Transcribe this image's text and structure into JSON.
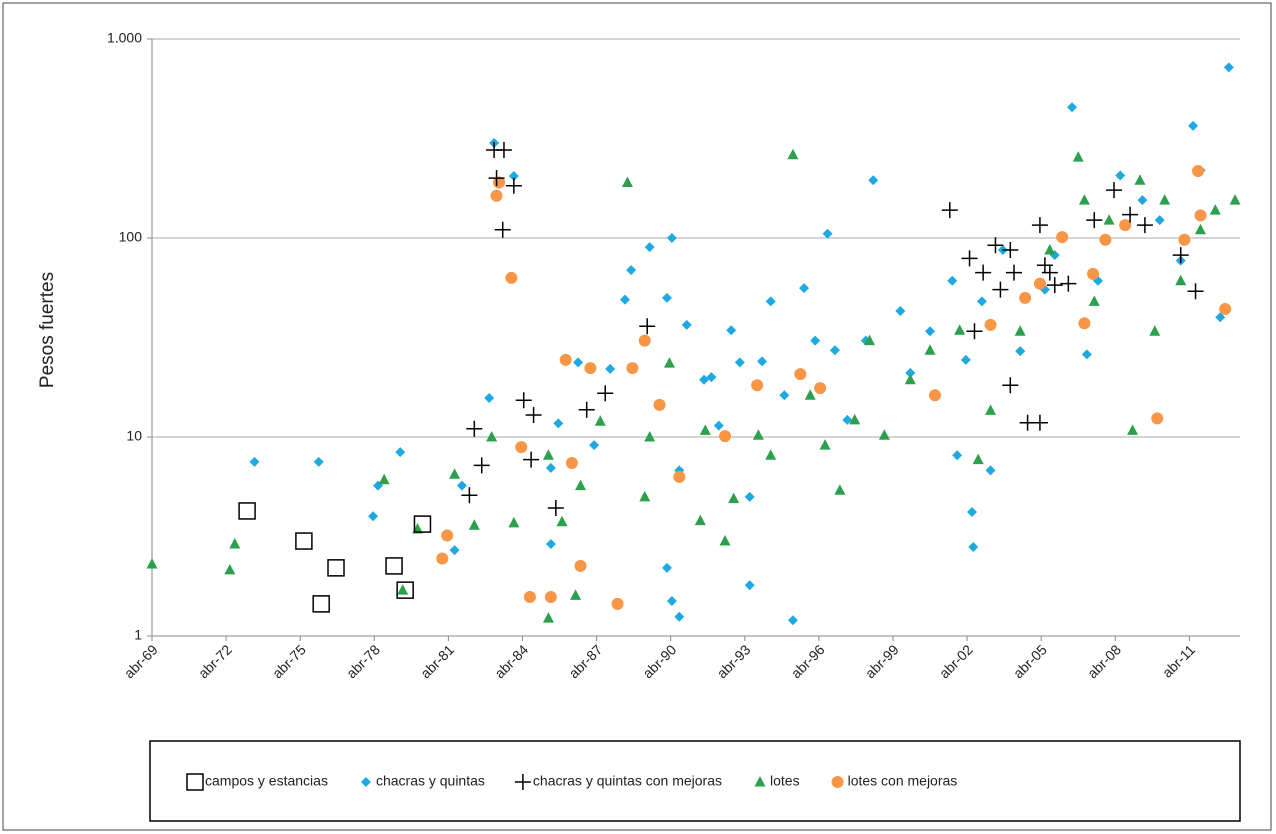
{
  "chart_data": {
    "type": "scatter",
    "y_label": "Pesos fuertes",
    "y_log": true,
    "grid": true,
    "legend": "bottom",
    "xlim": [
      1969.25,
      2013.3
    ],
    "xticks": [
      {
        "value": 1969.25,
        "label": "abr-69"
      },
      {
        "value": 1972.25,
        "label": "abr-72"
      },
      {
        "value": 1975.25,
        "label": "abr-75"
      },
      {
        "value": 1978.25,
        "label": "abr-78"
      },
      {
        "value": 1981.25,
        "label": "abr-81"
      },
      {
        "value": 1984.25,
        "label": "abr-84"
      },
      {
        "value": 1987.25,
        "label": "abr-87"
      },
      {
        "value": 1990.25,
        "label": "abr-90"
      },
      {
        "value": 1993.25,
        "label": "abr-93"
      },
      {
        "value": 1996.25,
        "label": "abr-96"
      },
      {
        "value": 1999.25,
        "label": "abr-99"
      },
      {
        "value": 2002.25,
        "label": "abr-02"
      },
      {
        "value": 2005.25,
        "label": "abr-05"
      },
      {
        "value": 2008.25,
        "label": "abr-08"
      },
      {
        "value": 2011.25,
        "label": "abr-11"
      }
    ],
    "ylim": [
      1,
      1000
    ],
    "yticks": [
      1,
      10,
      100,
      {
        "value": 1000,
        "label": "1.000"
      }
    ],
    "series": [
      {
        "name": "campos y estancias",
        "marker": "square",
        "color": "#000000",
        "x": [
          1973.1,
          1975.4,
          1976.7,
          1976.1,
          1979.05,
          1979.5,
          1980.2
        ],
        "values": [
          4.25,
          3.0,
          2.2,
          1.45,
          2.25,
          1.7,
          3.65
        ]
      },
      {
        "name": "chacras y quintas",
        "marker": "diamond",
        "color": "#1fa9e1",
        "x": [
          1973.4,
          1976.0,
          1978.2,
          1978.4,
          1979.3,
          1981.5,
          1981.8,
          1982.9,
          1983.1,
          1983.9,
          1985.4,
          1985.4,
          1985.7,
          1986.5,
          1987.15,
          1987.8,
          1988.4,
          1988.65,
          1989.4,
          1990.1,
          1990.3,
          1990.1,
          1990.3,
          1990.6,
          1990.9,
          1990.6,
          1991.6,
          1991.9,
          1992.2,
          1992.7,
          1993.05,
          1993.45,
          1993.95,
          1993.45,
          1994.3,
          1994.85,
          1995.2,
          1995.65,
          1996.1,
          1996.6,
          1996.9,
          1997.4,
          1998.15,
          1998.45,
          1999.55,
          1999.95,
          2000.75,
          2001.65,
          2001.85,
          2002.2,
          2002.45,
          2002.5,
          2002.85,
          2003.2,
          2003.7,
          2004.4,
          2005.4,
          2005.8,
          2006.5,
          2007.1,
          2007.55,
          2008.45,
          2009.35,
          2010.05,
          2010.9,
          2011.4,
          2011.7,
          2012.5,
          2012.85
        ],
        "values": [
          7.5,
          7.5,
          4.0,
          5.7,
          8.4,
          2.7,
          5.7,
          15.7,
          300,
          205,
          7.0,
          2.9,
          11.7,
          23.7,
          9.1,
          22,
          49,
          69,
          90,
          50,
          100,
          2.2,
          1.5,
          1.25,
          36.6,
          6.8,
          19.4,
          20,
          11.4,
          34.4,
          23.7,
          5.0,
          24,
          1.8,
          48,
          16.2,
          1.2,
          56,
          30.5,
          105,
          27.3,
          12.2,
          30.5,
          195,
          43,
          21,
          34,
          61,
          8.1,
          24.4,
          4.2,
          2.8,
          48,
          6.8,
          87,
          27,
          55,
          82,
          454,
          26,
          61,
          206,
          155,
          123,
          77,
          366,
          219,
          40,
          720
        ]
      },
      {
        "name": "chacras y quintas con mejoras",
        "marker": "plus",
        "color": "#000000",
        "x": [
          1983.2,
          1983.5,
          1983.1,
          1983.9,
          1983.45,
          1982.3,
          1982.6,
          1982.1,
          1984.3,
          1984.7,
          1984.6,
          1985.6,
          1986.85,
          1987.6,
          1989.3,
          2001.55,
          2002.35,
          2002.55,
          2002.9,
          2003.4,
          2003.6,
          2004.0,
          2004.15,
          2004.0,
          2004.7,
          2005.2,
          2005.2,
          2005.4,
          2005.6,
          2005.8,
          2006.35,
          2007.4,
          2008.2,
          2008.85,
          2009.45,
          2010.9,
          2011.5
        ],
        "values": [
          200,
          277,
          277,
          183,
          110,
          11,
          7.2,
          5.1,
          15.3,
          12.9,
          7.7,
          4.4,
          13.7,
          16.6,
          36,
          138,
          79,
          34,
          67,
          92,
          55,
          87,
          67,
          18.2,
          11.8,
          11.8,
          116,
          73,
          67,
          58,
          59,
          123,
          174,
          131,
          116,
          82,
          54
        ]
      },
      {
        "name": "lotes",
        "marker": "triangle",
        "color": "#2ca04c",
        "x": [
          1969.25,
          1972.4,
          1972.6,
          1978.65,
          1979.4,
          1980.0,
          1981.5,
          1982.3,
          1983.0,
          1983.9,
          1985.3,
          1985.3,
          1985.85,
          1986.4,
          1986.6,
          1987.4,
          1988.5,
          1989.2,
          1989.4,
          1990.2,
          1991.45,
          1991.65,
          1992.45,
          1992.8,
          1993.8,
          1994.3,
          1995.2,
          1995.9,
          1996.5,
          1997.1,
          1997.7,
          1998.3,
          1998.9,
          1999.95,
          2000.75,
          2001.95,
          2002.7,
          2003.2,
          2004.4,
          2005.6,
          2006.75,
          2007.0,
          2007.4,
          2008.0,
          2008.95,
          2009.25,
          2009.85,
          2010.25,
          2010.9,
          2011.7,
          2012.3,
          2013.1
        ],
        "values": [
          2.3,
          2.15,
          2.9,
          6.1,
          1.7,
          3.45,
          6.5,
          3.6,
          10,
          3.7,
          1.23,
          8.1,
          3.75,
          1.6,
          5.7,
          12,
          190,
          5.0,
          10,
          23.5,
          3.8,
          10.8,
          3.0,
          4.9,
          10.2,
          8.1,
          262,
          16.2,
          9.1,
          5.4,
          12.2,
          30.5,
          10.2,
          19.4,
          27.3,
          34.4,
          7.7,
          13.6,
          34,
          87,
          255,
          155,
          48,
          123,
          10.8,
          195,
          34,
          155,
          61,
          110,
          138,
          155
        ]
      },
      {
        "name": "lotes con mejoras",
        "marker": "circle",
        "color": "#f79646",
        "x": [
          1981.2,
          1981.0,
          1983.3,
          1983.2,
          1983.8,
          1984.2,
          1984.55,
          1985.4,
          1986.0,
          1986.6,
          1986.25,
          1987.0,
          1988.1,
          1988.7,
          1989.2,
          1989.8,
          1990.6,
          1992.45,
          1993.75,
          1995.5,
          1996.3,
          2000.95,
          2003.2,
          2004.6,
          2005.2,
          2006.1,
          2007.0,
          2007.35,
          2007.85,
          2008.65,
          2009.95,
          2011.05,
          2011.7,
          2011.6,
          2012.7
        ],
        "values": [
          3.2,
          2.45,
          190,
          163,
          63,
          8.9,
          1.57,
          1.57,
          24.4,
          2.25,
          7.4,
          22.2,
          1.45,
          22.2,
          30.5,
          14.5,
          6.3,
          10.1,
          18.2,
          20.7,
          17.6,
          16.2,
          36.6,
          50,
          59,
          101,
          37.3,
          66,
          98,
          116,
          12.4,
          98,
          130,
          217,
          44
        ]
      }
    ]
  }
}
